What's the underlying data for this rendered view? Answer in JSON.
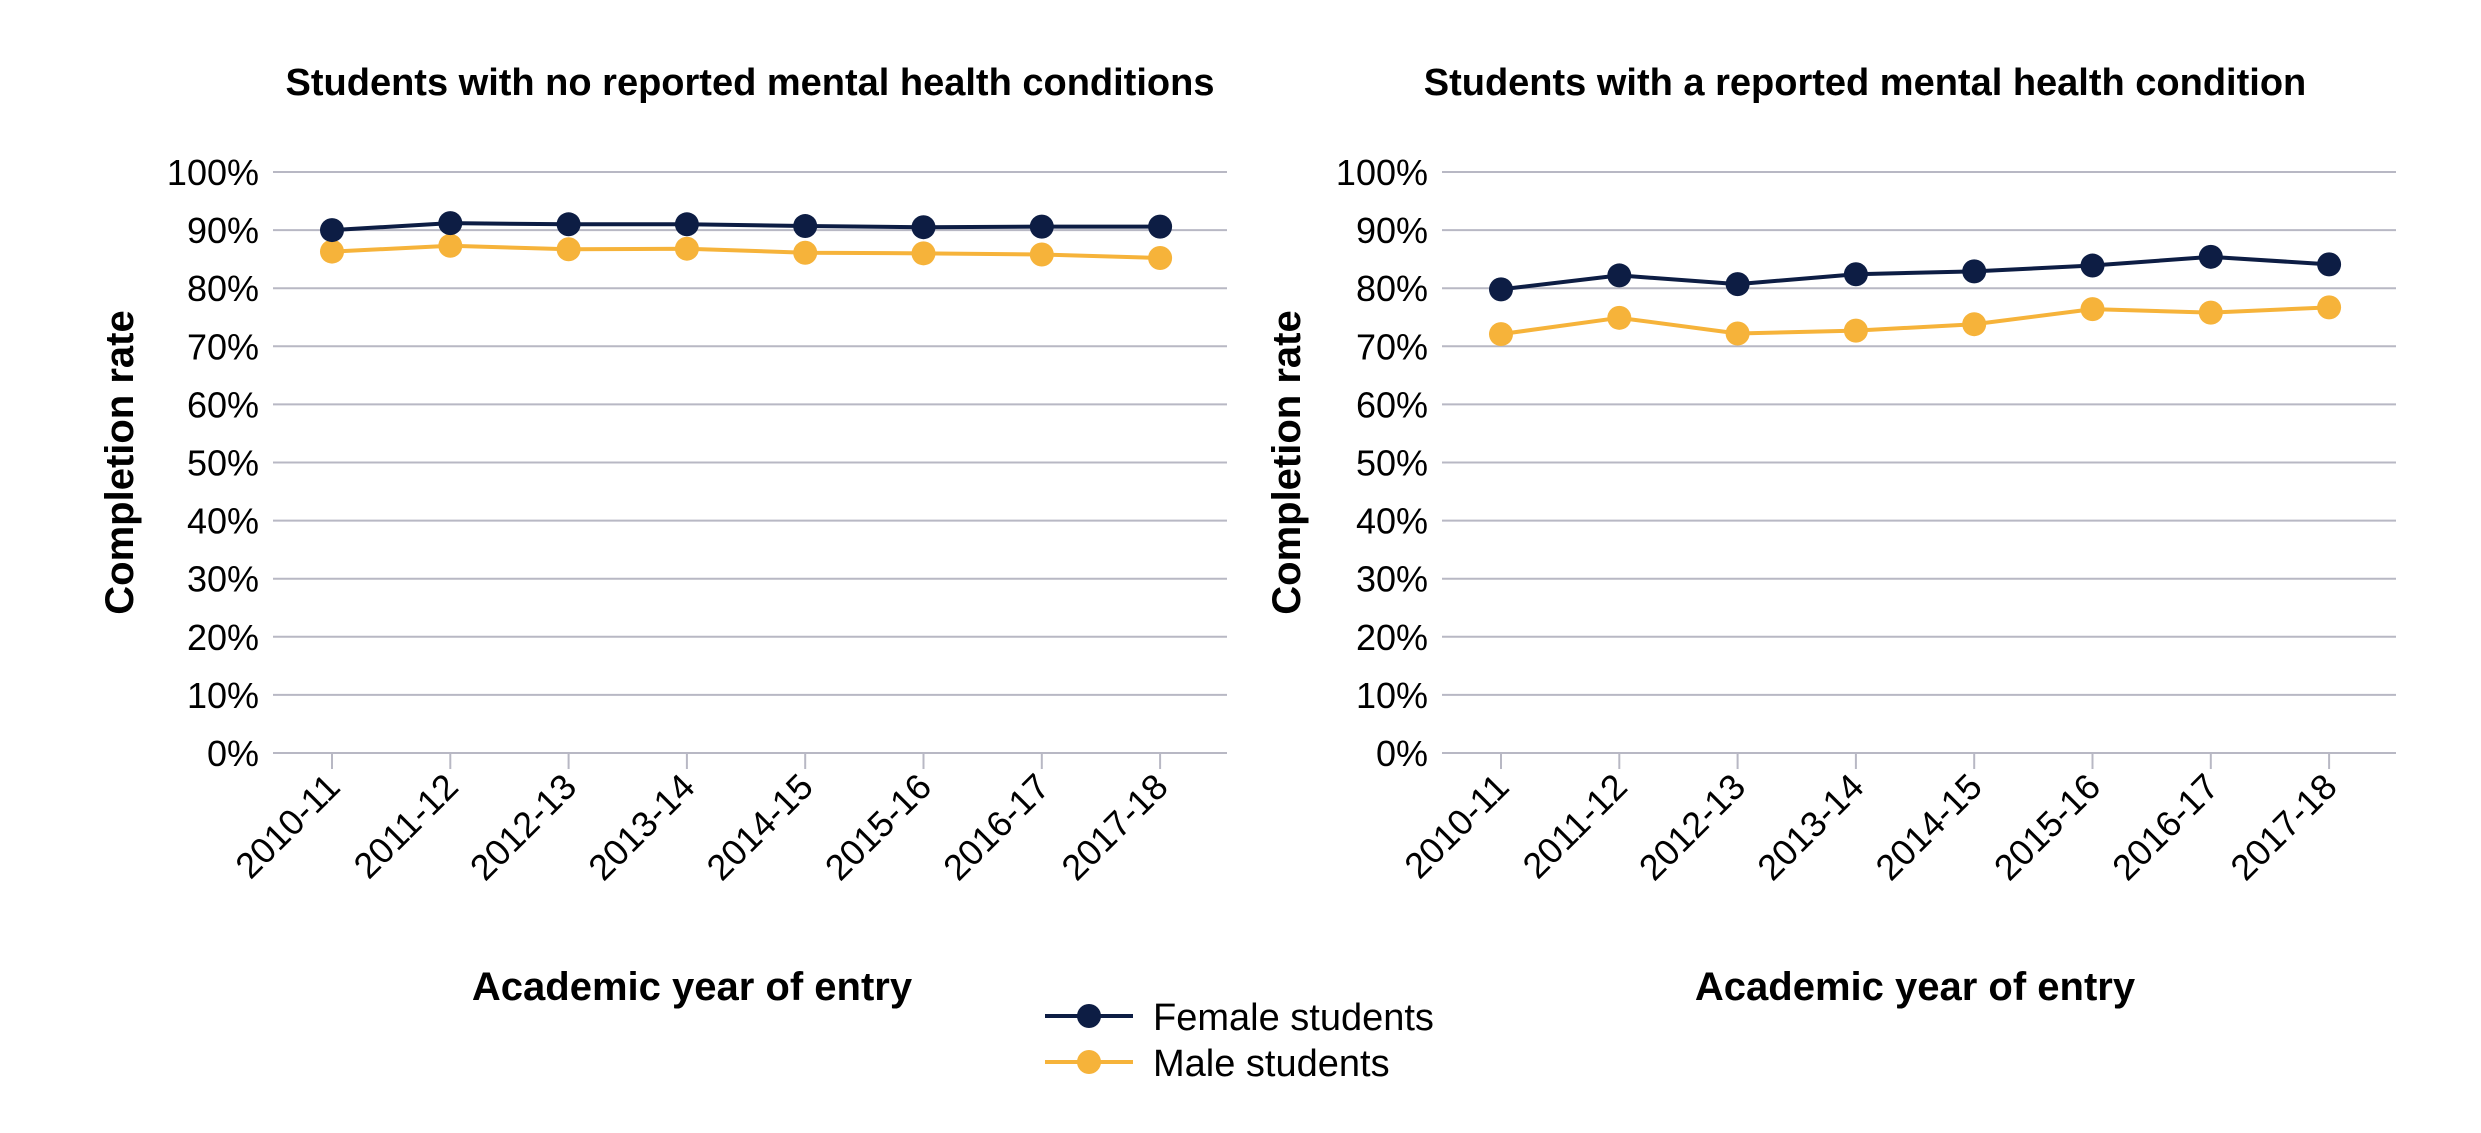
{
  "legend": {
    "items": [
      {
        "label": "Female students",
        "color": "#0d1d44"
      },
      {
        "label": "Male students",
        "color": "#f6b33a"
      }
    ]
  },
  "chart_data": [
    {
      "type": "line",
      "title": "Students with no reported mental health conditions",
      "xlabel": "Academic year of entry",
      "ylabel": "Completion rate",
      "ylim": [
        0,
        100
      ],
      "yticks": [
        "0%",
        "10%",
        "20%",
        "30%",
        "40%",
        "50%",
        "60%",
        "70%",
        "80%",
        "90%",
        "100%"
      ],
      "grid": true,
      "categories": [
        "2010-11",
        "2011-12",
        "2012-13",
        "2013-14",
        "2014-15",
        "2015-16",
        "2016-17",
        "2017-18"
      ],
      "series": [
        {
          "name": "Female students",
          "color": "#0d1d44",
          "values": [
            90.0,
            91.2,
            91.0,
            91.0,
            90.7,
            90.5,
            90.6,
            90.6
          ]
        },
        {
          "name": "Male students",
          "color": "#f6b33a",
          "values": [
            86.3,
            87.3,
            86.7,
            86.8,
            86.1,
            86.0,
            85.8,
            85.2
          ]
        }
      ]
    },
    {
      "type": "line",
      "title": "Students with a reported mental health condition",
      "xlabel": "Academic year of entry",
      "ylabel": "Completion rate",
      "ylim": [
        0,
        100
      ],
      "yticks": [
        "0%",
        "10%",
        "20%",
        "30%",
        "40%",
        "50%",
        "60%",
        "70%",
        "80%",
        "90%",
        "100%"
      ],
      "grid": true,
      "categories": [
        "2010-11",
        "2011-12",
        "2012-13",
        "2013-14",
        "2014-15",
        "2015-16",
        "2016-17",
        "2017-18"
      ],
      "series": [
        {
          "name": "Female students",
          "color": "#0d1d44",
          "values": [
            79.8,
            82.2,
            80.7,
            82.4,
            82.9,
            83.9,
            85.4,
            84.1
          ]
        },
        {
          "name": "Male students",
          "color": "#f6b33a",
          "values": [
            72.1,
            74.9,
            72.2,
            72.7,
            73.8,
            76.4,
            75.8,
            76.7
          ]
        }
      ]
    }
  ]
}
